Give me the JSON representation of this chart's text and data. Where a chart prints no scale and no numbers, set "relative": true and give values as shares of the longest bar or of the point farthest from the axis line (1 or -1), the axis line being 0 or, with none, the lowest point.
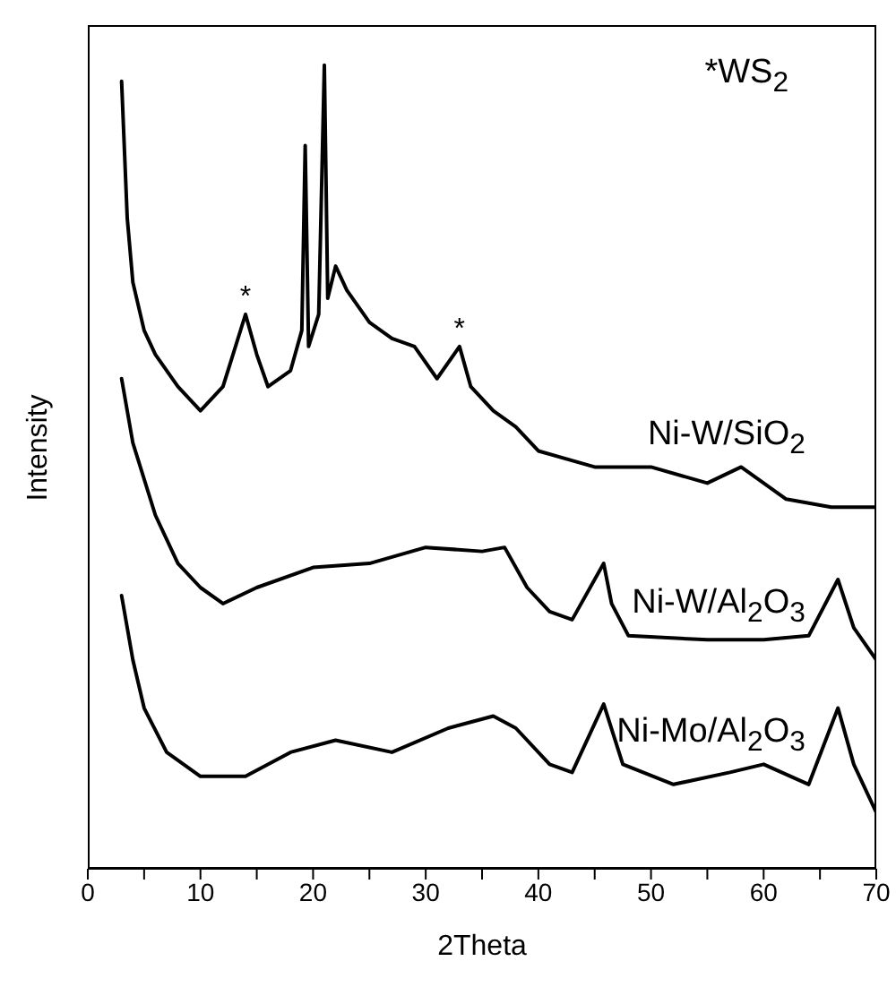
{
  "chart_data": {
    "type": "line",
    "relative": true,
    "xlabel": "2Theta",
    "ylabel": "Intensity",
    "xlim": [
      0,
      70
    ],
    "xticks": [
      0,
      {
        "value": 5,
        "label": null
      },
      10,
      {
        "value": 15,
        "label": null
      },
      20,
      {
        "value": 25,
        "label": null
      },
      30,
      {
        "value": 35,
        "label": null
      },
      40,
      {
        "value": 45,
        "label": null
      },
      50,
      {
        "value": 55,
        "label": null
      },
      60,
      {
        "value": 65,
        "label": null
      },
      70
    ],
    "marker": "none",
    "line_style": "solid",
    "annotations": [
      "*WS$_{2}$",
      {
        "text": "*",
        "x": 14,
        "y": 0.69
      },
      {
        "text": "*",
        "x": 33,
        "y": 0.65
      }
    ],
    "series": [
      {
        "name": "Ni-W/SiO$_{2}$",
        "color": "#000000",
        "x": [
          3,
          3.5,
          4,
          5,
          6,
          8,
          10,
          12,
          14,
          15,
          16,
          18,
          19,
          19.3,
          19.6,
          20.5,
          21,
          21.3,
          22,
          23,
          25,
          27,
          29,
          31,
          33,
          34,
          36,
          38,
          40,
          45,
          50,
          55,
          58,
          62,
          66,
          70
        ],
        "values": [
          0.98,
          0.81,
          0.73,
          0.67,
          0.64,
          0.6,
          0.57,
          0.6,
          0.69,
          0.64,
          0.6,
          0.62,
          0.67,
          0.9,
          0.65,
          0.69,
          1,
          0.71,
          0.75,
          0.72,
          0.68,
          0.66,
          0.65,
          0.61,
          0.65,
          0.6,
          0.57,
          0.55,
          0.52,
          0.5,
          0.5,
          0.48,
          0.5,
          0.46,
          0.45,
          0.45
        ]
      },
      {
        "name": "Ni-W/Al$_{2}$O$_{3}$",
        "color": "#000000",
        "x": [
          3,
          4,
          6,
          8,
          10,
          12,
          15,
          20,
          25,
          30,
          35,
          37,
          39,
          41,
          43,
          45.8,
          46.5,
          48,
          55,
          60,
          64,
          66.6,
          68,
          70
        ],
        "values": [
          0.61,
          0.53,
          0.44,
          0.38,
          0.35,
          0.33,
          0.35,
          0.375,
          0.38,
          0.4,
          0.395,
          0.4,
          0.35,
          0.32,
          0.31,
          0.38,
          0.33,
          0.29,
          0.285,
          0.285,
          0.29,
          0.36,
          0.3,
          0.26
        ]
      },
      {
        "name": "Ni-Mo/Al$_{2}$O$_{3}$",
        "color": "#000000",
        "x": [
          3,
          4,
          5,
          7,
          10,
          14,
          18,
          22,
          27,
          32,
          36,
          38,
          41,
          43,
          45.8,
          47.5,
          52,
          57,
          60,
          64,
          66.6,
          68,
          70
        ],
        "values": [
          0.34,
          0.26,
          0.2,
          0.145,
          0.115,
          0.115,
          0.145,
          0.16,
          0.145,
          0.175,
          0.19,
          0.175,
          0.13,
          0.12,
          0.205,
          0.13,
          0.105,
          0.12,
          0.13,
          0.105,
          0.2,
          0.13,
          0.07
        ]
      }
    ]
  }
}
